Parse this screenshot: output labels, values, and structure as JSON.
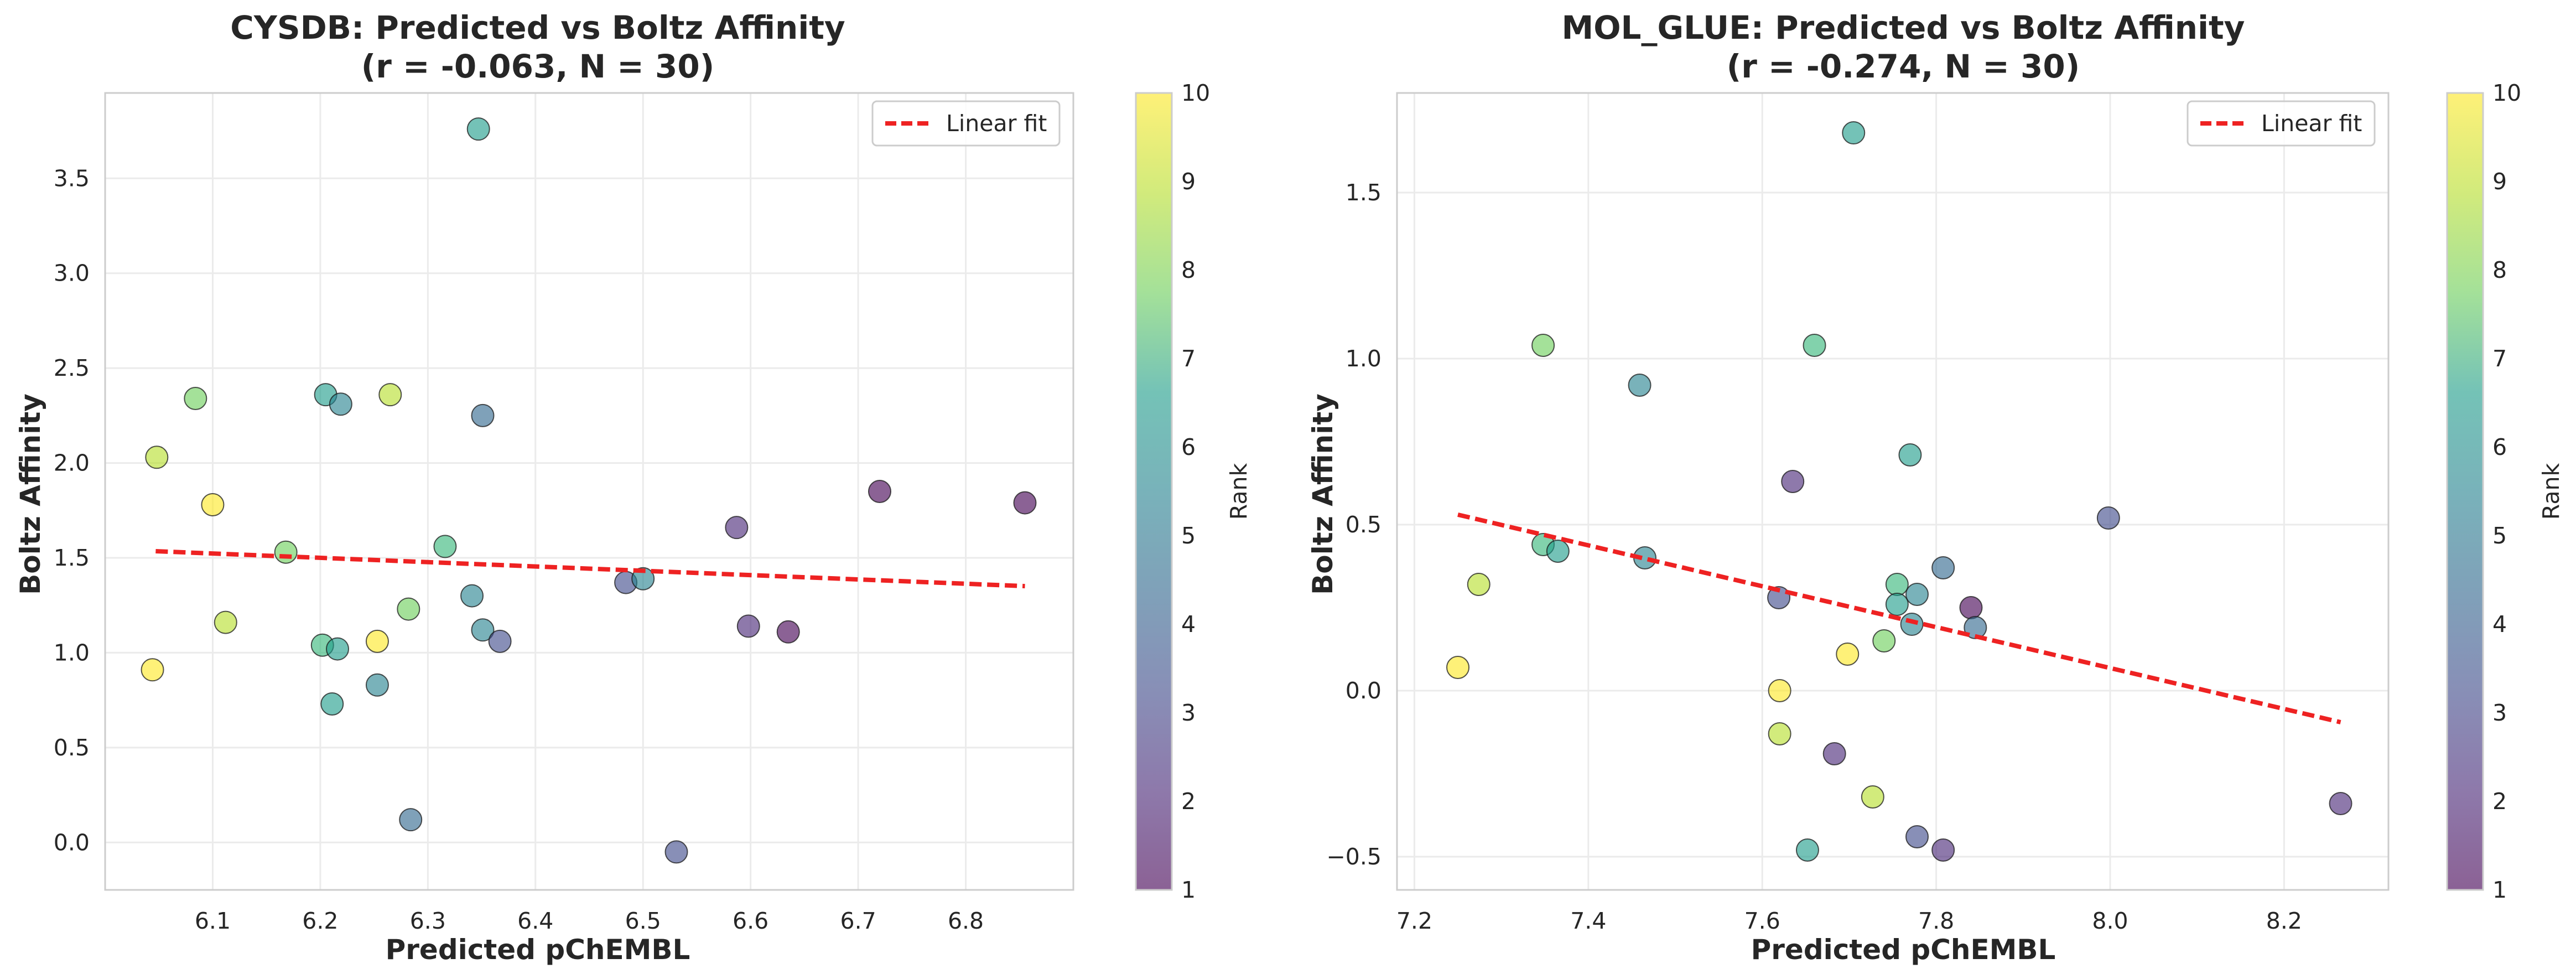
{
  "colorbar": {
    "label": "Rank",
    "ticks": [
      "1",
      "2",
      "3",
      "4",
      "5",
      "6",
      "7",
      "8",
      "9",
      "10"
    ],
    "min": 1,
    "max": 10
  },
  "chart_data": [
    {
      "type": "scatter",
      "title_line1": "CYSDB: Predicted vs Boltz Affinity",
      "title_line2": "(r = -0.063, N = 30)",
      "xlabel": "Predicted pChEMBL",
      "ylabel": "Boltz Affinity",
      "xlim": [
        6.0,
        6.9
      ],
      "ylim": [
        -0.25,
        3.95
      ],
      "x_ticks": [
        "6.1",
        "6.2",
        "6.3",
        "6.4",
        "6.5",
        "6.6",
        "6.7",
        "6.8"
      ],
      "y_ticks": [
        "0.0",
        "0.5",
        "1.0",
        "1.5",
        "2.0",
        "2.5",
        "3.0",
        "3.5"
      ],
      "grid": true,
      "legend": {
        "entry": "Linear fit",
        "position": "top-right"
      },
      "fit_line": {
        "x": [
          6.047,
          6.855
        ],
        "y": [
          1.535,
          1.351
        ],
        "color": "#ee2222"
      },
      "points": [
        {
          "x": 6.347,
          "y": 3.76,
          "rank": 6
        },
        {
          "x": 6.084,
          "y": 2.34,
          "rank": 8
        },
        {
          "x": 6.205,
          "y": 2.36,
          "rank": 6
        },
        {
          "x": 6.219,
          "y": 2.31,
          "rank": 5
        },
        {
          "x": 6.265,
          "y": 2.36,
          "rank": 9
        },
        {
          "x": 6.351,
          "y": 2.25,
          "rank": 4
        },
        {
          "x": 6.048,
          "y": 2.03,
          "rank": 9
        },
        {
          "x": 6.1,
          "y": 1.78,
          "rank": 10
        },
        {
          "x": 6.72,
          "y": 1.85,
          "rank": 1
        },
        {
          "x": 6.855,
          "y": 1.79,
          "rank": 1
        },
        {
          "x": 6.587,
          "y": 1.66,
          "rank": 2
        },
        {
          "x": 6.316,
          "y": 1.56,
          "rank": 7
        },
        {
          "x": 6.168,
          "y": 1.53,
          "rank": 8
        },
        {
          "x": 6.484,
          "y": 1.37,
          "rank": 3
        },
        {
          "x": 6.5,
          "y": 1.39,
          "rank": 5
        },
        {
          "x": 6.341,
          "y": 1.3,
          "rank": 5
        },
        {
          "x": 6.282,
          "y": 1.23,
          "rank": 8
        },
        {
          "x": 6.112,
          "y": 1.16,
          "rank": 9
        },
        {
          "x": 6.598,
          "y": 1.14,
          "rank": 2
        },
        {
          "x": 6.635,
          "y": 1.11,
          "rank": 1
        },
        {
          "x": 6.351,
          "y": 1.12,
          "rank": 5
        },
        {
          "x": 6.367,
          "y": 1.06,
          "rank": 3
        },
        {
          "x": 6.253,
          "y": 1.06,
          "rank": 10
        },
        {
          "x": 6.202,
          "y": 1.04,
          "rank": 7
        },
        {
          "x": 6.216,
          "y": 1.02,
          "rank": 6
        },
        {
          "x": 6.044,
          "y": 0.91,
          "rank": 10
        },
        {
          "x": 6.253,
          "y": 0.83,
          "rank": 5
        },
        {
          "x": 6.211,
          "y": 0.73,
          "rank": 6
        },
        {
          "x": 6.284,
          "y": 0.12,
          "rank": 4
        },
        {
          "x": 6.531,
          "y": -0.05,
          "rank": 3
        }
      ]
    },
    {
      "type": "scatter",
      "title_line1": "MOL_GLUE: Predicted vs Boltz Affinity",
      "title_line2": "(r = -0.274, N = 30)",
      "xlabel": "Predicted pChEMBL",
      "ylabel": "Boltz Affinity",
      "xlim": [
        7.18,
        8.32
      ],
      "ylim": [
        -0.6,
        1.8
      ],
      "x_ticks": [
        "7.2",
        "7.4",
        "7.6",
        "7.8",
        "8.0",
        "8.2"
      ],
      "y_ticks": [
        "−0.5",
        "0.0",
        "0.5",
        "1.0",
        "1.5"
      ],
      "grid": true,
      "legend": {
        "entry": "Linear fit",
        "position": "top-right"
      },
      "fit_line": {
        "x": [
          7.25,
          8.265
        ],
        "y": [
          0.53,
          -0.095
        ],
        "color": "#ee2222"
      },
      "points": [
        {
          "x": 7.705,
          "y": 1.68,
          "rank": 6
        },
        {
          "x": 7.348,
          "y": 1.04,
          "rank": 8
        },
        {
          "x": 7.66,
          "y": 1.04,
          "rank": 7
        },
        {
          "x": 7.459,
          "y": 0.92,
          "rank": 5
        },
        {
          "x": 7.77,
          "y": 0.71,
          "rank": 6
        },
        {
          "x": 7.635,
          "y": 0.63,
          "rank": 2
        },
        {
          "x": 7.998,
          "y": 0.52,
          "rank": 3
        },
        {
          "x": 7.348,
          "y": 0.44,
          "rank": 7
        },
        {
          "x": 7.365,
          "y": 0.42,
          "rank": 6
        },
        {
          "x": 7.465,
          "y": 0.4,
          "rank": 5
        },
        {
          "x": 7.808,
          "y": 0.37,
          "rank": 4
        },
        {
          "x": 7.274,
          "y": 0.32,
          "rank": 9
        },
        {
          "x": 7.755,
          "y": 0.32,
          "rank": 7
        },
        {
          "x": 7.778,
          "y": 0.29,
          "rank": 5
        },
        {
          "x": 7.619,
          "y": 0.28,
          "rank": 3
        },
        {
          "x": 7.755,
          "y": 0.26,
          "rank": 6
        },
        {
          "x": 7.84,
          "y": 0.25,
          "rank": 1
        },
        {
          "x": 7.772,
          "y": 0.2,
          "rank": 5
        },
        {
          "x": 7.845,
          "y": 0.19,
          "rank": 4
        },
        {
          "x": 7.74,
          "y": 0.15,
          "rank": 8
        },
        {
          "x": 7.698,
          "y": 0.11,
          "rank": 10
        },
        {
          "x": 7.25,
          "y": 0.07,
          "rank": 10
        },
        {
          "x": 7.62,
          "y": 0.0,
          "rank": 10
        },
        {
          "x": 7.62,
          "y": -0.13,
          "rank": 9
        },
        {
          "x": 7.683,
          "y": -0.19,
          "rank": 2
        },
        {
          "x": 7.727,
          "y": -0.32,
          "rank": 9
        },
        {
          "x": 8.265,
          "y": -0.34,
          "rank": 2
        },
        {
          "x": 7.778,
          "y": -0.44,
          "rank": 3
        },
        {
          "x": 7.652,
          "y": -0.48,
          "rank": 6
        },
        {
          "x": 7.808,
          "y": -0.48,
          "rank": 2
        }
      ]
    }
  ]
}
